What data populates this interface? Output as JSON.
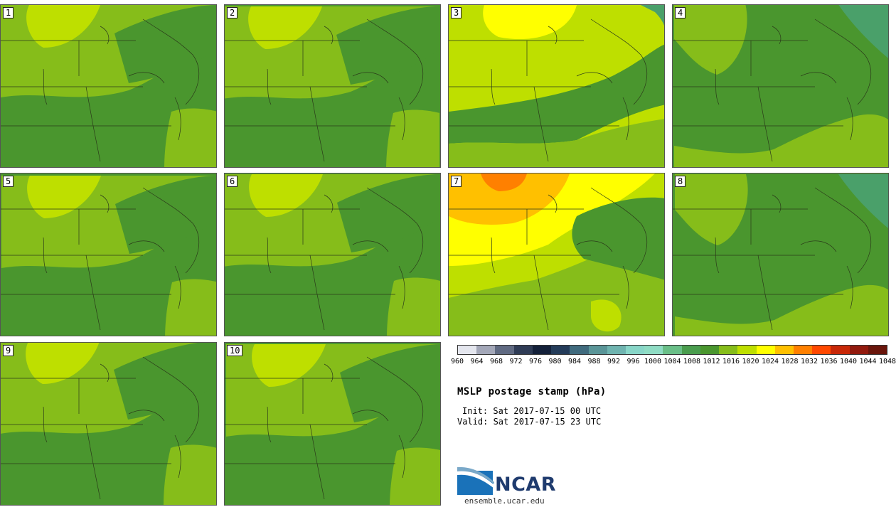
{
  "panels": [
    {
      "label": "1",
      "style": "base"
    },
    {
      "label": "2",
      "style": "base"
    },
    {
      "label": "3",
      "style": "yellow"
    },
    {
      "label": "4",
      "style": "dark"
    },
    {
      "label": "5",
      "style": "base"
    },
    {
      "label": "6",
      "style": "base"
    },
    {
      "label": "7",
      "style": "high"
    },
    {
      "label": "8",
      "style": "dark"
    },
    {
      "label": "9",
      "style": "base"
    },
    {
      "label": "10",
      "style": "base"
    }
  ],
  "colorbar": {
    "ticks": [
      "960",
      "964",
      "968",
      "972",
      "976",
      "980",
      "984",
      "988",
      "992",
      "996",
      "1000",
      "1004",
      "1008",
      "1012",
      "1016",
      "1020",
      "1024",
      "1028",
      "1032",
      "1036",
      "1040",
      "1044",
      "1048"
    ],
    "colors": [
      "#e4e6ee",
      "#a3a7b8",
      "#606a82",
      "#2f3c56",
      "#14213a",
      "#243c5a",
      "#406b7e",
      "#5a9598",
      "#6fb4b0",
      "#88d6c8",
      "#8fdcc4",
      "#6abf88",
      "#4a9d4e",
      "#4a962e",
      "#86bd1a",
      "#bedf00",
      "#ffff00",
      "#ffc000",
      "#ff8000",
      "#ff4800",
      "#c82808",
      "#921a0e",
      "#6a160c"
    ]
  },
  "title": "MSLP postage stamp (hPa)",
  "init": "Init: Sat 2017-07-15 00 UTC",
  "valid": "Valid: Sat 2017-07-15 23 UTC",
  "logo_text": "NCAR",
  "credit": "ensemble.ucar.edu"
}
